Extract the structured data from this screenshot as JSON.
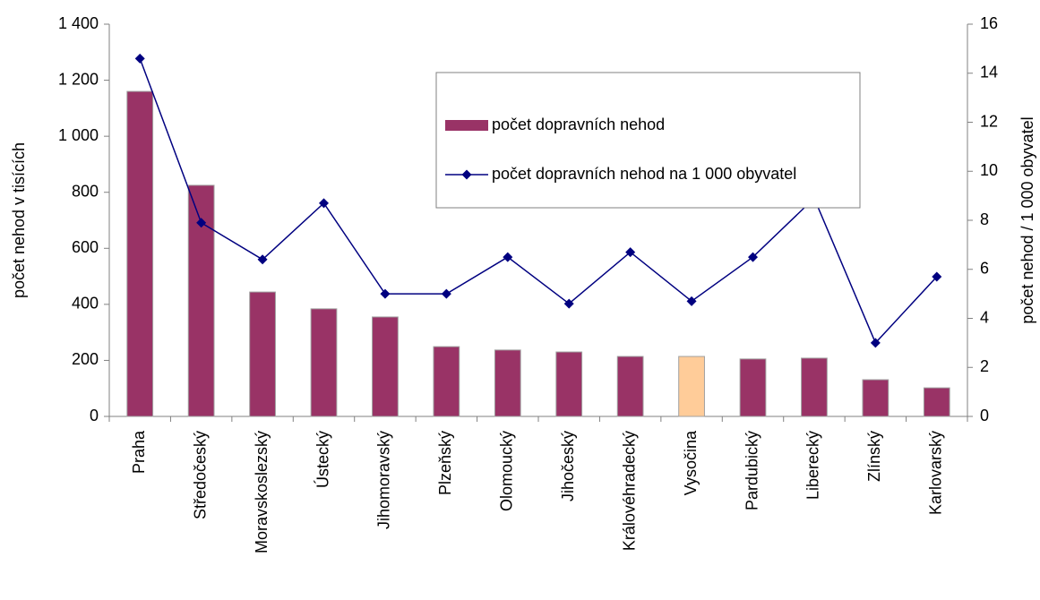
{
  "chart_data": {
    "type": "bar-line",
    "y_label": "počet nehod v tisících",
    "y2_label": "počet nehod / 1 000 obyvatel",
    "categories": [
      "Praha",
      "Středočeský",
      "Moravskoslezský",
      "Ústecký",
      "Jihomoravský",
      "Plzeňský",
      "Olomoucký",
      "Jihočeský",
      "Královéhradecký",
      "Vysočina",
      "Pardubický",
      "Liberecký",
      "Zlínský",
      "Karlovarský"
    ],
    "series": [
      {
        "name": "počet dopravních nehod",
        "type": "bar",
        "color": "#993366",
        "colors": [
          "#993366",
          "#993366",
          "#993366",
          "#993366",
          "#993366",
          "#993366",
          "#993366",
          "#993366",
          "#993366",
          "#ffcc99",
          "#993366",
          "#993366",
          "#993366",
          "#993366"
        ],
        "values": [
          1160,
          825,
          444,
          384,
          355,
          249,
          237,
          230,
          214,
          214,
          205,
          208,
          131,
          102
        ]
      },
      {
        "name": "počet dopravních nehod na 1 000 obyvatel",
        "type": "line",
        "axis": "y2",
        "color": "#000080",
        "values": [
          14.6,
          7.9,
          6.4,
          8.7,
          5.0,
          5.0,
          6.5,
          4.6,
          6.7,
          4.7,
          6.5,
          8.9,
          3.0,
          5.7
        ]
      }
    ],
    "ylim": [
      0,
      1400
    ],
    "yticks": [
      0,
      200,
      400,
      600,
      800,
      {
        "value": 1000,
        "label": "1 000"
      },
      {
        "value": 1200,
        "label": "1 200"
      },
      {
        "value": 1400,
        "label": "1 400"
      }
    ],
    "y2lim": [
      0,
      16
    ],
    "y2ticks": [
      0,
      2,
      4,
      6,
      8,
      10,
      12,
      14,
      16
    ],
    "grid": false,
    "legend": "top-right"
  }
}
